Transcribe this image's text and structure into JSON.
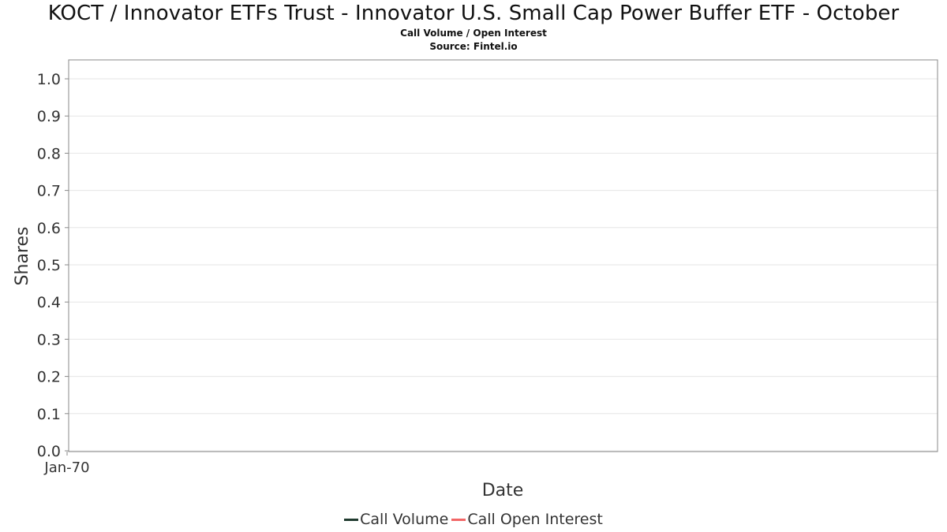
{
  "header": {
    "title": "KOCT / Innovator ETFs Trust - Innovator U.S. Small Cap Power Buffer ETF - October",
    "subtitle": "Call Volume / Open Interest",
    "source": "Source: Fintel.io"
  },
  "colors": {
    "call_volume": "#1f3a2e",
    "call_open_interest": "#f26666",
    "grid": "#e6e6e6",
    "axis": "#888888"
  },
  "chart_data": {
    "type": "line",
    "title": "KOCT / Innovator ETFs Trust - Innovator U.S. Small Cap Power Buffer ETF - October",
    "subtitle": "Call Volume / Open Interest",
    "xlabel": "Date",
    "ylabel": "Shares",
    "ylim": [
      0.0,
      1.0
    ],
    "yticks": [
      "0.0",
      "0.1",
      "0.2",
      "0.3",
      "0.4",
      "0.5",
      "0.6",
      "0.7",
      "0.8",
      "0.9",
      "1.0"
    ],
    "xticks": [
      "Jan-70"
    ],
    "grid": true,
    "legend_position": "bottom",
    "series": [
      {
        "name": "Call Volume",
        "x": [],
        "values": []
      },
      {
        "name": "Call Open Interest",
        "x": [],
        "values": []
      }
    ]
  }
}
